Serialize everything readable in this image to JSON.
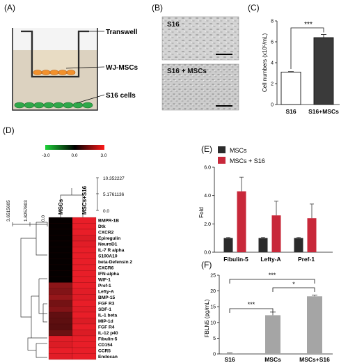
{
  "colors": {
    "mscs": "#2b2b2b",
    "mscs_s16": "#c8283a",
    "heat_red": "#e8202a",
    "heat_black": "#050000",
    "bar_gray": "#a5a5a5"
  },
  "panels": {
    "A": {
      "label": "(A)",
      "callouts": [
        "Transwell",
        "WJ-MSCs",
        "S16 cells"
      ]
    },
    "B": {
      "label": "(B)",
      "images": [
        {
          "caption": "S16"
        },
        {
          "caption": "S16 + MSCs"
        }
      ]
    },
    "C": {
      "label": "(C)",
      "significance": "***"
    },
    "D": {
      "label": "(D)",
      "color_scale": {
        "min_label": "-3.0",
        "mid_label": "0.0",
        "max_label": "3.0"
      },
      "column_tree_scale": [
        "10.352227",
        "5.1761136",
        "0.0"
      ],
      "row_tree_scale": [
        "3.6515605",
        "1.8257803",
        "0.0"
      ]
    },
    "E": {
      "label": "(E)"
    },
    "F": {
      "label": "(F)",
      "comparisons": [
        {
          "text": "***"
        },
        {
          "text": "***"
        },
        {
          "text": "*"
        }
      ]
    }
  },
  "chart_data": [
    {
      "panel": "C",
      "type": "bar",
      "categories": [
        "S16",
        "S16+MSCs"
      ],
      "values": [
        3.1,
        6.4
      ],
      "errors": [
        0.05,
        0.3
      ],
      "ylabel": "Cell numbers (x10⁵/mL)",
      "ylim": [
        0,
        8
      ],
      "yticks": [
        "0",
        "2",
        "4",
        "6",
        "8"
      ],
      "bar_fill": [
        "#ffffff",
        "#3a3a3a"
      ]
    },
    {
      "panel": "D",
      "type": "heatmap",
      "columns": [
        "MSCs",
        "MSCs+S16"
      ],
      "rows": [
        "BMPR-1B",
        "Dtk",
        "CXCR2",
        "Epiregulin",
        "NeuroD1",
        "IL-7 R alpha",
        "S100A10",
        "beta-Defensin 2",
        "CXCR6",
        "IFN-alpha",
        "WIF-1",
        "Pref-1",
        "Lefty-A",
        "BMP-15",
        "FGF R3",
        "SDF-1",
        "IL-1 beta",
        "MIP-1d",
        "FGF R4",
        "IL-12 p40",
        "Fibulin-5",
        "CD154",
        "CCR5",
        "Endocan"
      ],
      "values": [
        [
          -3.0,
          3.0
        ],
        [
          -3.0,
          3.0
        ],
        [
          -3.0,
          3.0
        ],
        [
          -3.0,
          2.8
        ],
        [
          -3.0,
          2.9
        ],
        [
          -3.0,
          3.0
        ],
        [
          -3.0,
          3.0
        ],
        [
          -3.0,
          3.0
        ],
        [
          -3.0,
          3.0
        ],
        [
          -3.0,
          3.0
        ],
        [
          -3.0,
          3.0
        ],
        [
          -1.3,
          3.0
        ],
        [
          -1.5,
          2.9
        ],
        [
          -1.1,
          2.9
        ],
        [
          -1.8,
          3.0
        ],
        [
          -1.5,
          2.9
        ],
        [
          -2.2,
          3.0
        ],
        [
          -2.3,
          2.8
        ],
        [
          -2.4,
          3.0
        ],
        [
          -2.0,
          2.8
        ],
        [
          2.9,
          3.0
        ],
        [
          2.8,
          3.0
        ],
        [
          3.0,
          3.0
        ],
        [
          2.9,
          3.0
        ]
      ],
      "value_range": [
        -3.0,
        3.0
      ]
    },
    {
      "panel": "E",
      "type": "bar",
      "categories": [
        "Fibulin-5",
        "Lefty-A",
        "Pref-1"
      ],
      "series": [
        {
          "name": "MSCs",
          "values": [
            1.0,
            1.0,
            1.0
          ],
          "errors": [
            0.05,
            0.05,
            0.05
          ]
        },
        {
          "name": "MSCs + S16",
          "values": [
            4.3,
            2.6,
            2.4
          ],
          "errors": [
            1.0,
            1.0,
            1.0
          ]
        }
      ],
      "ylabel": "Fold",
      "ylim": [
        0,
        6
      ],
      "yticks": [
        "0.0",
        "2.0",
        "4.0",
        "6.0"
      ],
      "legend": "top-left"
    },
    {
      "panel": "F",
      "type": "bar",
      "categories": [
        "S16",
        "MSCs",
        "MSCs+S16"
      ],
      "values": [
        0.2,
        12.3,
        18.3
      ],
      "errors": [
        0.1,
        1.0,
        0.4
      ],
      "ylabel": "FBLN5 (pg/mL)",
      "ylim": [
        0,
        25
      ],
      "yticks": [
        "0",
        "5",
        "10",
        "15",
        "20",
        "25"
      ]
    }
  ]
}
